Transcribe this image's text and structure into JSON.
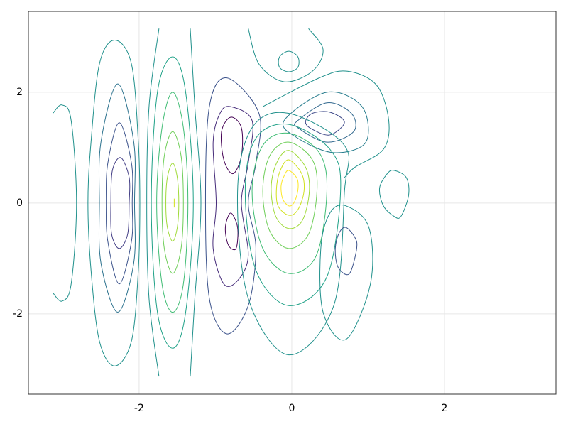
{
  "chart_data": {
    "type": "contour",
    "xlim": [
      -3.45,
      3.46
    ],
    "ylim": [
      -3.45,
      3.46
    ],
    "xticks": [
      -2,
      0,
      2
    ],
    "yticks": [
      -2,
      0,
      2
    ],
    "grid": true,
    "contours": [
      {
        "color": "#21918c",
        "closed": false,
        "x": [
          -3.13,
          -3.01,
          -2.89,
          -2.82,
          -2.89,
          -3.01,
          -3.13
        ],
        "y": [
          1.62,
          1.77,
          1.49,
          0,
          -1.46,
          -1.77,
          -1.62
        ]
      },
      {
        "color": "#21918c",
        "closed": true,
        "x": [
          -2.32,
          -2.1,
          -2.01,
          -1.99,
          -2.01,
          -2.1,
          -2.32,
          -2.52,
          -2.63,
          -2.67,
          -2.63,
          -2.52
        ],
        "y": [
          2.94,
          2.51,
          1.1,
          0,
          -1.21,
          -2.49,
          -2.94,
          -2.49,
          -1.21,
          0,
          1.1,
          2.51
        ]
      },
      {
        "color": "#2c728e",
        "closed": true,
        "x": [
          -2.28,
          -2.07,
          -2.06,
          -2.07,
          -2.28,
          -2.5,
          -2.52,
          -2.5
        ],
        "y": [
          2.15,
          1.1,
          0,
          -1.08,
          -1.97,
          -1.08,
          0,
          1.1
        ]
      },
      {
        "color": "#3b528b",
        "closed": true,
        "x": [
          -2.26,
          -2.1,
          -2.09,
          -2.1,
          -2.26,
          -2.41,
          -2.43,
          -2.41
        ],
        "y": [
          1.45,
          0.72,
          0,
          -0.69,
          -1.46,
          -0.69,
          0,
          0.72
        ]
      },
      {
        "color": "#433e85",
        "closed": true,
        "x": [
          -2.24,
          -2.13,
          -2.13,
          -2.15,
          -2.26,
          -2.36,
          -2.37,
          -2.35
        ],
        "y": [
          0.82,
          0.46,
          0,
          -0.56,
          -0.82,
          -0.56,
          0,
          0.59
        ]
      },
      {
        "color": "#21918c",
        "closed": false,
        "x": [
          -1.74,
          -1.87,
          -1.9,
          -1.87,
          -1.74
        ],
        "y": [
          3.15,
          1.74,
          0,
          -1.72,
          -3.13
        ]
      },
      {
        "color": "#21918c",
        "closed": false,
        "x": [
          -1.33,
          -1.27,
          -1.19,
          -1.27,
          -1.33
        ],
        "y": [
          3.15,
          1.74,
          0,
          -1.72,
          -3.13
        ]
      },
      {
        "color": "#1fa187",
        "closed": true,
        "x": [
          -1.56,
          -1.39,
          -1.29,
          -1.39,
          -1.56,
          -1.76,
          -1.84,
          -1.76
        ],
        "y": [
          2.64,
          2.0,
          0,
          -1.97,
          -2.62,
          -1.97,
          0,
          2.0
        ]
      },
      {
        "color": "#3fbc73",
        "closed": true,
        "x": [
          -1.56,
          -1.42,
          -1.36,
          -1.42,
          -1.56,
          -1.7,
          -1.77,
          -1.7
        ],
        "y": [
          2.0,
          1.36,
          0,
          -1.46,
          -1.97,
          -1.46,
          0,
          1.36
        ]
      },
      {
        "color": "#6ece58",
        "closed": true,
        "x": [
          -1.56,
          -1.45,
          -1.42,
          -1.45,
          -1.56,
          -1.67,
          -1.7,
          -1.67
        ],
        "y": [
          1.29,
          0.85,
          0,
          -0.82,
          -1.27,
          -0.82,
          0,
          0.85
        ]
      },
      {
        "color": "#a0da39",
        "closed": true,
        "x": [
          -1.56,
          -1.5,
          -1.48,
          -1.5,
          -1.56,
          -1.63,
          -1.65,
          -1.63
        ],
        "y": [
          0.72,
          0.46,
          0,
          -0.44,
          -0.69,
          -0.44,
          0,
          0.46
        ]
      },
      {
        "color": "#d0e11c",
        "closed": false,
        "x": [
          -1.54,
          -1.54
        ],
        "y": [
          0.08,
          -0.08
        ]
      },
      {
        "color": "#440154",
        "closed": true,
        "x": [
          -0.8,
          -0.66,
          -0.66,
          -0.77,
          -0.89,
          -0.92
        ],
        "y": [
          1.55,
          1.36,
          0.85,
          0.53,
          0.78,
          1.29
        ]
      },
      {
        "color": "#440154",
        "closed": true,
        "x": [
          -0.8,
          -0.71,
          -0.73,
          -0.83,
          -0.87
        ],
        "y": [
          -0.18,
          -0.44,
          -0.82,
          -0.76,
          -0.44
        ]
      },
      {
        "color": "#472d7b",
        "closed": true,
        "x": [
          -0.8,
          -0.52,
          -0.57,
          -0.66,
          -0.57,
          -0.71,
          -0.89,
          -1.03,
          -0.99,
          -1.03,
          -0.94
        ],
        "y": [
          1.74,
          1.49,
          0.72,
          0,
          -0.95,
          -1.4,
          -1.46,
          -0.82,
          0,
          1.1,
          1.62
        ]
      },
      {
        "color": "#3b528b",
        "closed": true,
        "x": [
          -0.85,
          -0.43,
          -0.47,
          -0.57,
          -0.47,
          -0.57,
          -0.85,
          -1.08,
          -1.13,
          -1.08
        ],
        "y": [
          2.26,
          1.62,
          0.72,
          0,
          -0.82,
          -1.85,
          -2.36,
          -1.72,
          0,
          1.74
        ]
      },
      {
        "color": "#3e4989",
        "closed": true,
        "x": [
          0.27,
          0.5,
          0.69,
          0.5,
          0.27,
          0.18
        ],
        "y": [
          1.62,
          1.64,
          1.46,
          1.23,
          1.33,
          1.46
        ]
      },
      {
        "color": "#31688e",
        "closed": true,
        "x": [
          0.08,
          0.46,
          0.78,
          0.81,
          0.46,
          0.08
        ],
        "y": [
          1.49,
          1.81,
          1.62,
          1.29,
          1.1,
          1.36
        ]
      },
      {
        "color": "#287d8e",
        "closed": true,
        "x": [
          -0.1,
          0.46,
          0.92,
          0.97,
          0.55,
          0.08
        ],
        "y": [
          1.49,
          2.0,
          1.74,
          1.1,
          0.91,
          1.17
        ]
      },
      {
        "color": "#21918c",
        "closed": true,
        "x": [
          -0.04,
          0.08,
          0.08,
          -0.04,
          -0.16,
          -0.16
        ],
        "y": [
          2.74,
          2.64,
          2.45,
          2.37,
          2.45,
          2.64
        ]
      },
      {
        "color": "#21918c",
        "closed": false,
        "x": [
          -0.57,
          -0.43,
          -0.1,
          0.27,
          0.41,
          0.22
        ],
        "y": [
          3.15,
          2.51,
          2.19,
          2.38,
          2.77,
          3.15
        ]
      },
      {
        "color": "#21918c",
        "closed": false,
        "x": [
          -0.38,
          0.36,
          0.73,
          1.11,
          1.27,
          1.2,
          0.83,
          0.69
        ],
        "y": [
          1.74,
          2.26,
          2.38,
          2.13,
          1.49,
          0.97,
          0.65,
          0.46
        ]
      },
      {
        "color": "#fde725",
        "closed": true,
        "x": [
          -0.04,
          0.07,
          0.08,
          0.03,
          -0.04,
          -0.12,
          -0.14,
          -0.1
        ],
        "y": [
          0.59,
          0.44,
          0.23,
          0.01,
          -0.05,
          0.08,
          0.31,
          0.49
        ]
      },
      {
        "color": "#d0e11c",
        "closed": true,
        "x": [
          -0.04,
          0.13,
          0.16,
          0.08,
          -0.04,
          -0.18,
          -0.2,
          -0.15
        ],
        "y": [
          0.78,
          0.53,
          0.21,
          -0.12,
          -0.22,
          -0.05,
          0.27,
          0.59
        ]
      },
      {
        "color": "#a0da39",
        "closed": true,
        "x": [
          -0.04,
          0.18,
          0.23,
          0.14,
          -0.04,
          -0.21,
          -0.27,
          -0.2
        ],
        "y": [
          0.95,
          0.65,
          0.21,
          -0.31,
          -0.46,
          -0.24,
          0.27,
          0.72
        ]
      },
      {
        "color": "#6ece58",
        "closed": true,
        "x": [
          -0.04,
          0.27,
          0.33,
          0.22,
          -0.04,
          -0.29,
          -0.38,
          -0.29
        ],
        "y": [
          1.1,
          0.78,
          0.21,
          -0.56,
          -0.82,
          -0.5,
          0.21,
          0.85
        ]
      },
      {
        "color": "#3fbc73",
        "closed": true,
        "x": [
          -0.04,
          0.36,
          0.46,
          0.32,
          -0.04,
          -0.38,
          -0.52,
          -0.38
        ],
        "y": [
          1.26,
          0.91,
          0.21,
          -0.95,
          -1.27,
          -0.82,
          0.21,
          1.04
        ]
      },
      {
        "color": "#1fa187",
        "closed": true,
        "x": [
          -0.04,
          0.5,
          0.64,
          0.46,
          -0.04,
          -0.47,
          -0.61,
          -0.47
        ],
        "y": [
          1.42,
          0.97,
          0.27,
          -1.33,
          -1.85,
          -1.21,
          0.21,
          1.17
        ]
      },
      {
        "color": "#21918c",
        "closed": true,
        "x": [
          -0.04,
          0.69,
          0.69,
          0.55,
          -0.04,
          -0.57,
          -0.71,
          -0.52
        ],
        "y": [
          1.62,
          1.04,
          0.21,
          -1.85,
          -2.74,
          -1.72,
          0.21,
          1.36
        ]
      },
      {
        "color": "#3b528b",
        "closed": true,
        "x": [
          0.71,
          0.83,
          0.85,
          0.78,
          0.71,
          0.6,
          0.57,
          0.62
        ],
        "y": [
          -0.44,
          -0.63,
          -0.82,
          -1.21,
          -1.29,
          -1.14,
          -0.82,
          -0.54
        ]
      },
      {
        "color": "#21918c",
        "closed": true,
        "x": [
          0.71,
          1.01,
          1.03,
          0.71,
          0.41,
          0.38,
          0.5
        ],
        "y": [
          -0.05,
          -0.44,
          -1.46,
          -2.46,
          -1.97,
          -0.82,
          -0.18
        ]
      },
      {
        "color": "#21918c",
        "closed": true,
        "x": [
          1.34,
          1.5,
          1.53,
          1.43,
          1.34,
          1.2,
          1.15,
          1.25
        ],
        "y": [
          0.59,
          0.46,
          0.14,
          -0.24,
          -0.24,
          -0.05,
          0.27,
          0.53
        ]
      }
    ]
  }
}
